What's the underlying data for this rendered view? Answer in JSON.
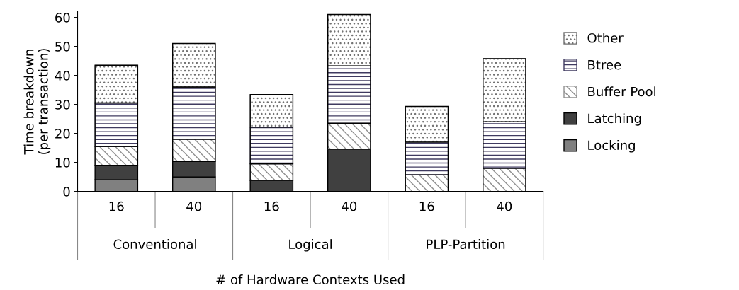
{
  "chart_data": {
    "type": "bar",
    "stacked": true,
    "ylabel": "Time breakdown\n(per transaction)",
    "xlabel": "# of Hardware Contexts Used",
    "categories": [
      "16",
      "40",
      "16",
      "40",
      "16",
      "40"
    ],
    "annotations": [
      "Conventional",
      "Logical",
      "PLP-Partition"
    ],
    "series": [
      {
        "name": "Locking",
        "color": "#808080",
        "values": [
          4.0,
          5.0,
          0,
          0,
          0,
          0
        ]
      },
      {
        "name": "Latching",
        "color": "#404040",
        "values": [
          5.0,
          5.3,
          3.8,
          14.5,
          0,
          0
        ]
      },
      {
        "name": "Buffer Pool",
        "color": "#909090",
        "values": [
          6.5,
          7.7,
          5.7,
          9.0,
          5.7,
          8.0
        ]
      },
      {
        "name": "Btree",
        "color": "#3f3a60",
        "values": [
          15.0,
          18.0,
          12.7,
          19.8,
          11.3,
          16.0
        ]
      },
      {
        "name": "Other",
        "color": "#707070",
        "values": [
          13.0,
          15.0,
          11.2,
          17.7,
          12.3,
          21.8
        ]
      }
    ],
    "ylim": [
      0,
      62
    ],
    "yticks": [
      0,
      10,
      20,
      30,
      40,
      50,
      60
    ],
    "grid": false,
    "legend": "right"
  }
}
